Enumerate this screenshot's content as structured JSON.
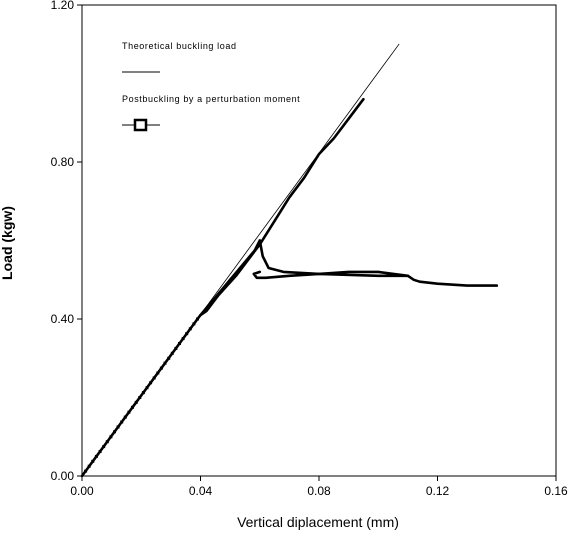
{
  "chart_data": {
    "type": "line",
    "title": "",
    "xlabel": "Vertical diplacement (mm)",
    "ylabel": "Load (kgw)",
    "xlim": [
      0,
      0.16
    ],
    "ylim": [
      0,
      1.2
    ],
    "x_ticks": [
      "0.00",
      "0.04",
      "0.08",
      "0.12",
      "0.16"
    ],
    "y_ticks": [
      "0.00",
      "0.40",
      "0.80",
      "1.20"
    ],
    "grid": false,
    "legend_position": "top-left",
    "series": [
      {
        "name": "Theoretical buckling load",
        "style": "thin-line",
        "color": "#000000",
        "x": [
          0.0,
          0.107
        ],
        "y": [
          0.0,
          1.1
        ]
      },
      {
        "name": "Postbuckling by a perturbation moment",
        "style": "thick-line-square-markers",
        "color": "#000000",
        "x": [
          0.0,
          0.039,
          0.04,
          0.05,
          0.06,
          0.065,
          0.07,
          0.075,
          0.08,
          0.085,
          0.09,
          0.095
        ],
        "y": [
          0.0,
          0.4,
          0.41,
          0.5,
          0.59,
          0.65,
          0.71,
          0.76,
          0.82,
          0.86,
          0.91,
          0.96
        ]
      },
      {
        "name": "",
        "style": "thick-line",
        "color": "#000000",
        "x": [
          0.06,
          0.061,
          0.063,
          0.068,
          0.08,
          0.1,
          0.11,
          0.112,
          0.114,
          0.12,
          0.13,
          0.14
        ],
        "y": [
          0.6,
          0.56,
          0.53,
          0.52,
          0.515,
          0.51,
          0.51,
          0.5,
          0.495,
          0.49,
          0.485,
          0.485
        ]
      },
      {
        "name": "",
        "style": "thick-line",
        "color": "#000000",
        "x": [
          0.06,
          0.058,
          0.059,
          0.062,
          0.07,
          0.08,
          0.09,
          0.1,
          0.11
        ],
        "y": [
          0.52,
          0.515,
          0.505,
          0.505,
          0.51,
          0.515,
          0.52,
          0.52,
          0.51
        ]
      },
      {
        "name": "",
        "style": "thick-line",
        "color": "#000000",
        "x": [
          0.06,
          0.055,
          0.05,
          0.045,
          0.041,
          0.04,
          0.042,
          0.046,
          0.052,
          0.058,
          0.06
        ],
        "y": [
          0.59,
          0.54,
          0.5,
          0.45,
          0.415,
          0.41,
          0.42,
          0.46,
          0.51,
          0.57,
          0.6
        ]
      }
    ]
  }
}
